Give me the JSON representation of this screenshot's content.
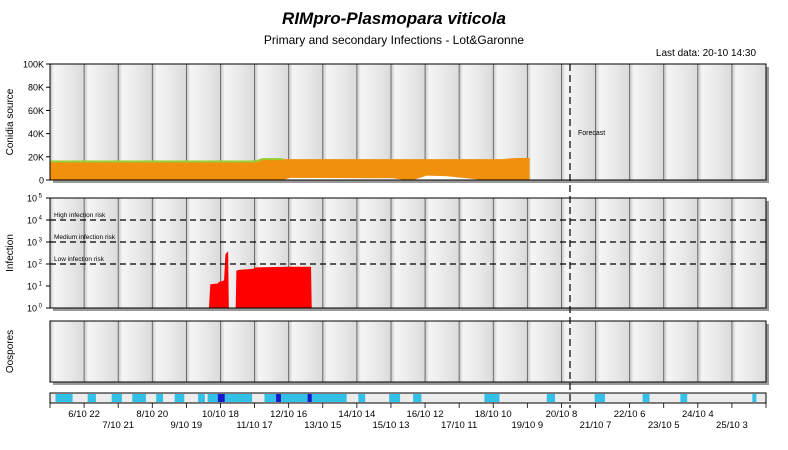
{
  "title": "RIMpro-Plasmopara viticola",
  "subtitle": "Primary and secondary Infections - Lot&Garonne",
  "last_data": "Last data: 20-10 14:30",
  "colors": {
    "conidia_fill": "#f0900c",
    "green_band": "#9acd32",
    "infection": "#ff0000",
    "ribbon_cyan": "#33c0e8",
    "ribbon_blue": "#1818c8",
    "panel_bg": "#f0f0f0"
  },
  "chart_data": [
    {
      "type": "area",
      "name": "conidia",
      "ylabel": "Conidia source",
      "yticks": [
        "0",
        "20K",
        "40K",
        "60K",
        "80K",
        "100K"
      ],
      "ylim": [
        0,
        100000
      ],
      "annotation": "Forecast",
      "series": [
        {
          "name": "",
          "x": [
            0,
            30,
            31,
            34,
            34.01,
            52,
            60,
            66,
            68,
            70
          ],
          "values": [
            16000,
            16000,
            18000,
            18000,
            18000,
            18000,
            18000,
            18000,
            19000,
            19000
          ]
        }
      ]
    },
    {
      "type": "area",
      "name": "infection",
      "ylabel": "Infection",
      "yscale": "log",
      "ylim": [
        1,
        100000
      ],
      "yticks": [
        "10 0",
        "10 1",
        "10 2",
        "10 3",
        "10 4",
        "10 5"
      ],
      "thresholds": [
        {
          "label": "High infection risk",
          "value": 10000
        },
        {
          "label": "Medium infection risk",
          "value": 1000
        },
        {
          "label": "Low infection risk",
          "value": 100
        }
      ],
      "series": [
        {
          "name": "",
          "x": [
            23.2,
            23.4,
            24.5,
            24.6,
            25.4,
            25.6,
            26.0,
            26.1,
            27.1,
            27.2,
            27.7,
            29.6,
            30.0,
            35.0,
            37.1,
            38.1,
            38.2
          ],
          "values": [
            1,
            12,
            13,
            15,
            18,
            280,
            380,
            1,
            1,
            50,
            55,
            60,
            70,
            75,
            75,
            75,
            1
          ]
        }
      ]
    },
    {
      "type": "area",
      "name": "oospores",
      "ylabel": "Oospores",
      "series": []
    }
  ],
  "x_axis": {
    "row1": [
      "6/10 22",
      "8/10 20",
      "10/10 18",
      "12/10 16",
      "14/10 14",
      "16/10 12",
      "18/10 10",
      "20/10 8",
      "22/10 6",
      "24/10 4"
    ],
    "row2": [
      "7/10 21",
      "9/10 19",
      "11/10 17",
      "13/10 15",
      "15/10 13",
      "17/10 11",
      "19/10 9",
      "21/10 7",
      "23/10 5",
      "25/10 3"
    ]
  },
  "ribbon": [
    {
      "x": 0.8,
      "w": 2.5,
      "c": "cyan"
    },
    {
      "x": 5.5,
      "w": 1.2,
      "c": "cyan"
    },
    {
      "x": 9.0,
      "w": 1.5,
      "c": "cyan"
    },
    {
      "x": 12.0,
      "w": 2.0,
      "c": "cyan"
    },
    {
      "x": 15.5,
      "w": 1.0,
      "c": "cyan"
    },
    {
      "x": 18.2,
      "w": 1.4,
      "c": "cyan"
    },
    {
      "x": 21.6,
      "w": 1.0,
      "c": "cyan"
    },
    {
      "x": 23.0,
      "w": 6.5,
      "c": "cyan"
    },
    {
      "x": 24.5,
      "w": 1.0,
      "c": "blue"
    },
    {
      "x": 31.3,
      "w": 12.0,
      "c": "cyan"
    },
    {
      "x": 33.0,
      "w": 0.7,
      "c": "blue"
    },
    {
      "x": 37.6,
      "w": 0.6,
      "c": "blue"
    },
    {
      "x": 45.0,
      "w": 1.0,
      "c": "cyan"
    },
    {
      "x": 49.5,
      "w": 1.6,
      "c": "cyan"
    },
    {
      "x": 53.0,
      "w": 1.2,
      "c": "cyan"
    },
    {
      "x": 63.4,
      "w": 2.2,
      "c": "cyan"
    },
    {
      "x": 72.5,
      "w": 1.2,
      "c": "cyan"
    },
    {
      "x": 79.5,
      "w": 1.5,
      "c": "cyan"
    },
    {
      "x": 86.5,
      "w": 1.0,
      "c": "cyan"
    },
    {
      "x": 92.0,
      "w": 1.0,
      "c": "cyan"
    },
    {
      "x": 102.5,
      "w": 0.6,
      "c": "cyan"
    }
  ]
}
